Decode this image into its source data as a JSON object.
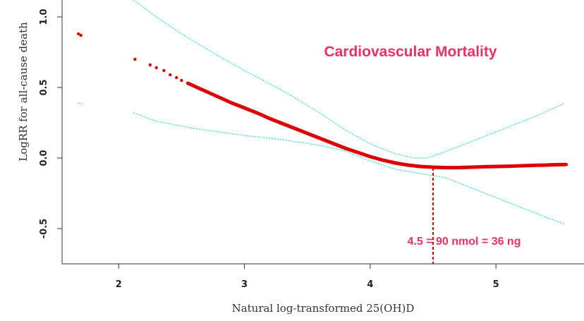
{
  "chart_data": {
    "type": "line",
    "title": "Cardiovascular Mortality",
    "xlabel": "Natural log-transformed 25(OH)D",
    "ylabel": "LogRR for all-cause death",
    "xlim": [
      1.55,
      5.7
    ],
    "ylim": [
      -0.75,
      1.12
    ],
    "x_ticks": [
      2,
      3,
      4,
      5
    ],
    "y_ticks": [
      -0.5,
      0.0,
      0.5,
      1.0
    ],
    "x_tick_labels": [
      "2",
      "3",
      "4",
      "5"
    ],
    "y_tick_labels": [
      "-0.5",
      "0.0",
      "0.5",
      "1.0"
    ],
    "series": [
      {
        "name": "Estimate",
        "style": "points",
        "color": "#dd0000",
        "points": [
          [
            1.68,
            0.88
          ],
          [
            1.7,
            0.87
          ],
          [
            2.13,
            0.7
          ],
          [
            2.25,
            0.66
          ],
          [
            2.3,
            0.64
          ],
          [
            2.36,
            0.62
          ],
          [
            2.41,
            0.59
          ],
          [
            2.46,
            0.57
          ],
          [
            2.5,
            0.55
          ],
          [
            2.55,
            0.53
          ],
          [
            2.6,
            0.51
          ],
          [
            2.7,
            0.47
          ],
          [
            2.8,
            0.43
          ],
          [
            2.9,
            0.39
          ],
          [
            3.0,
            0.355
          ],
          [
            3.1,
            0.32
          ],
          [
            3.2,
            0.28
          ],
          [
            3.3,
            0.245
          ],
          [
            3.4,
            0.21
          ],
          [
            3.5,
            0.175
          ],
          [
            3.6,
            0.14
          ],
          [
            3.7,
            0.105
          ],
          [
            3.8,
            0.07
          ],
          [
            3.9,
            0.04
          ],
          [
            4.0,
            0.01
          ],
          [
            4.1,
            -0.015
          ],
          [
            4.2,
            -0.035
          ],
          [
            4.3,
            -0.05
          ],
          [
            4.4,
            -0.06
          ],
          [
            4.5,
            -0.065
          ],
          [
            4.6,
            -0.068
          ],
          [
            4.7,
            -0.068
          ],
          [
            4.8,
            -0.065
          ],
          [
            4.9,
            -0.062
          ],
          [
            5.0,
            -0.06
          ],
          [
            5.1,
            -0.058
          ],
          [
            5.2,
            -0.055
          ],
          [
            5.3,
            -0.052
          ],
          [
            5.4,
            -0.05
          ],
          [
            5.45,
            -0.048
          ],
          [
            5.5,
            -0.047
          ],
          [
            5.55,
            -0.046
          ]
        ]
      },
      {
        "name": "Upper 95% CI",
        "style": "dotted",
        "color": "#40dddd",
        "points": [
          [
            2.12,
            1.12
          ],
          [
            2.3,
            1.0
          ],
          [
            2.5,
            0.88
          ],
          [
            2.8,
            0.72
          ],
          [
            3.0,
            0.62
          ],
          [
            3.3,
            0.48
          ],
          [
            3.6,
            0.32
          ],
          [
            3.8,
            0.2
          ],
          [
            4.0,
            0.1
          ],
          [
            4.2,
            0.03
          ],
          [
            4.35,
            0.0
          ],
          [
            4.45,
            0.0
          ],
          [
            4.55,
            0.03
          ],
          [
            4.7,
            0.08
          ],
          [
            4.9,
            0.15
          ],
          [
            5.1,
            0.22
          ],
          [
            5.3,
            0.29
          ],
          [
            5.55,
            0.39
          ]
        ]
      },
      {
        "name": "Lower 95% CI",
        "style": "dotted",
        "color": "#40dddd",
        "points": [
          [
            2.12,
            0.32
          ],
          [
            2.3,
            0.26
          ],
          [
            2.6,
            0.21
          ],
          [
            3.0,
            0.16
          ],
          [
            3.3,
            0.13
          ],
          [
            3.6,
            0.09
          ],
          [
            3.8,
            0.05
          ],
          [
            4.0,
            -0.02
          ],
          [
            4.2,
            -0.08
          ],
          [
            4.4,
            -0.11
          ],
          [
            4.6,
            -0.14
          ],
          [
            4.8,
            -0.21
          ],
          [
            5.0,
            -0.28
          ],
          [
            5.2,
            -0.35
          ],
          [
            5.4,
            -0.42
          ],
          [
            5.55,
            -0.47
          ]
        ]
      },
      {
        "name": "Lower 95% CI (left point)",
        "style": "dotted",
        "color": "#40dddd",
        "points": [
          [
            1.68,
            0.39
          ],
          [
            1.72,
            0.38
          ]
        ]
      }
    ],
    "annotations": [
      {
        "type": "vline",
        "x": 4.5,
        "y_from": -0.07,
        "color": "#dd0000",
        "style": "dashed"
      },
      {
        "type": "text",
        "text": "4.5 = 90 nmol = 36 ng",
        "x": 4.5,
        "y": -0.58,
        "color": "#e8326a"
      },
      {
        "type": "text",
        "text": "Cardiovascular Mortality",
        "x": 4.6,
        "y": 0.76,
        "color": "#e8326a"
      }
    ],
    "grid": false
  }
}
